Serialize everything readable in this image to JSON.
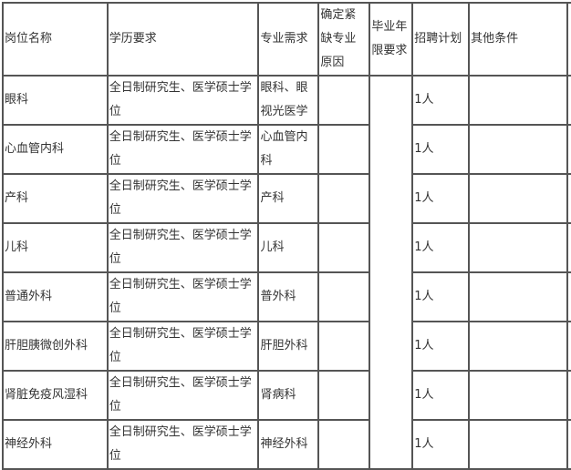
{
  "headers": [
    "岗位名称",
    "学历要求",
    "专业需求",
    "确定紧缺专业原因",
    "毕业年限要求",
    "招聘计划",
    "其他条件"
  ],
  "rows": [
    {
      "position": "眼科",
      "education": "全日制研究生、医学硕士学位",
      "major": "眼科、眼视光医学",
      "reason": "",
      "plan": "1人",
      "other": ""
    },
    {
      "position": "心血管内科",
      "education": "全日制研究生、医学硕士学位",
      "major": "心血管内科",
      "reason": "",
      "plan": "1人",
      "other": ""
    },
    {
      "position": "产科",
      "education": "全日制研究生、医学硕士学位",
      "major": "产科",
      "reason": "",
      "plan": "1人",
      "other": ""
    },
    {
      "position": "儿科",
      "education": "全日制研究生、医学硕士学位",
      "major": "儿科",
      "reason": "",
      "plan": "1人",
      "other": ""
    },
    {
      "position": "普通外科",
      "education": "全日制研究生、医学硕士学位",
      "major": "普外科",
      "reason": "",
      "plan": "1人",
      "other": ""
    },
    {
      "position": "肝胆胰微创外科",
      "education": "全日制研究生、医学硕士学位",
      "major": "肝胆外科",
      "reason": "",
      "plan": "1人",
      "other": ""
    },
    {
      "position": "肾脏免疫风湿科",
      "education": "全日制研究生、医学硕士学位",
      "major": "肾病科",
      "reason": "",
      "plan": "1人",
      "other": ""
    },
    {
      "position": "神经外科",
      "education": "全日制研究生、医学硕士学位",
      "major": "神经外科",
      "reason": "",
      "plan": "1人",
      "other": ""
    }
  ],
  "graduation_merged": ""
}
